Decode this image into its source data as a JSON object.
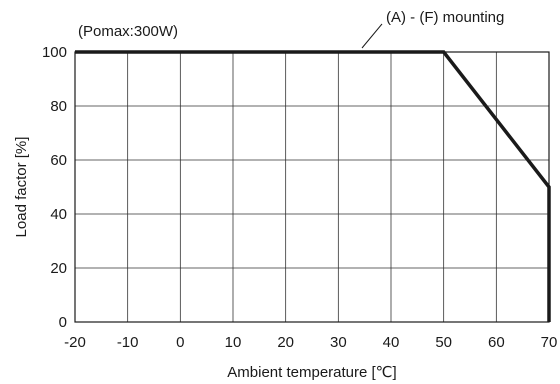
{
  "chart_data": {
    "type": "line",
    "title": "",
    "xlabel": "Ambient temperature [℃]",
    "ylabel": "Load factor [%]",
    "xlim": [
      -20,
      70
    ],
    "ylim": [
      0,
      100
    ],
    "x_ticks": [
      -20,
      -10,
      0,
      10,
      20,
      30,
      40,
      50,
      60,
      70
    ],
    "y_ticks": [
      0,
      20,
      40,
      60,
      80,
      100
    ],
    "grid": true,
    "series": [
      {
        "name": "(A) - (F) mounting",
        "x": [
          -20,
          50,
          70,
          70
        ],
        "y": [
          100,
          100,
          50,
          0
        ],
        "color": "#1a1a1a"
      }
    ],
    "annotations": {
      "pomax": "(Pomax:300W)",
      "series_label": "(A) - (F) mounting"
    }
  }
}
